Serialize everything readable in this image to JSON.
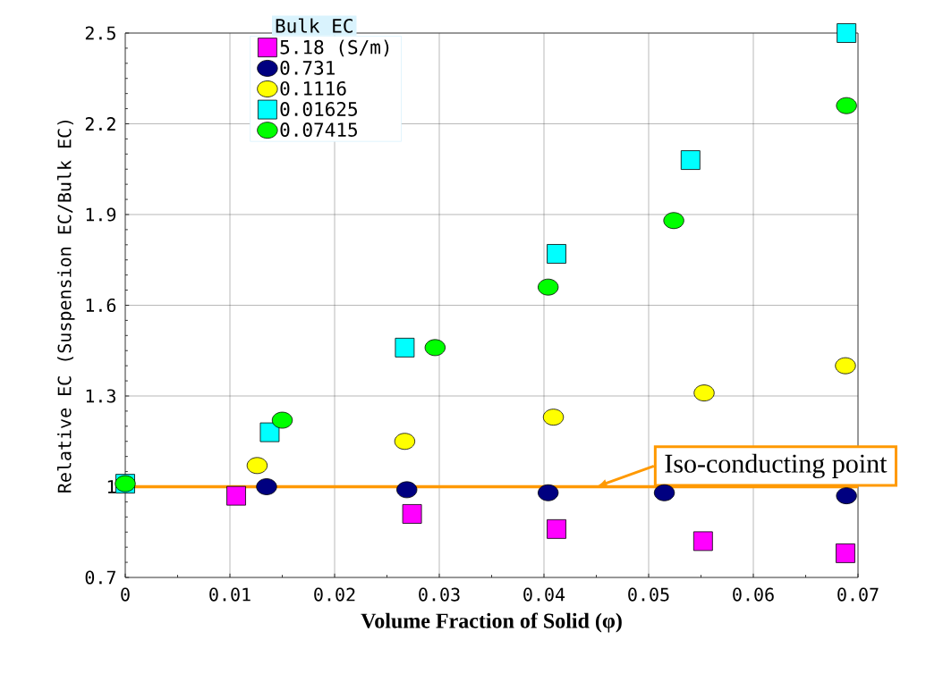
{
  "chart_data": {
    "type": "scatter",
    "xlabel": "Volume Fraction of Solid (φ)",
    "ylabel": "Relative EC (Suspension EC/Bulk EC)",
    "legend_title": "Bulk EC",
    "legend": "top left",
    "grid": true,
    "xlim": [
      0,
      0.07
    ],
    "xticks": [
      0,
      0.01,
      0.02,
      0.03,
      0.04,
      0.05,
      0.06,
      0.07
    ],
    "ylim": [
      0.7,
      2.5
    ],
    "yticks": [
      0.7,
      1,
      1.3,
      1.6,
      1.9,
      2.2,
      2.5
    ],
    "series": [
      {
        "name": "5.18 (S/m)",
        "color": "#ff00ff",
        "marker": "square",
        "x": [
          0.0106,
          0.0274,
          0.0412,
          0.0552,
          0.0688
        ],
        "values": [
          0.97,
          0.91,
          0.86,
          0.82,
          0.78
        ]
      },
      {
        "name": "0.731",
        "color": "#000080",
        "marker": "circle",
        "x": [
          0.0135,
          0.0269,
          0.0404,
          0.0515,
          0.0689
        ],
        "values": [
          1.0,
          0.99,
          0.98,
          0.98,
          0.97
        ]
      },
      {
        "name": "0.1116",
        "color": "#ffff00",
        "marker": "circle",
        "x": [
          0.0126,
          0.0267,
          0.0409,
          0.0553,
          0.0688
        ],
        "values": [
          1.07,
          1.15,
          1.23,
          1.31,
          1.4
        ]
      },
      {
        "name": "0.01625",
        "color": "#00ffff",
        "marker": "square",
        "x": [
          0,
          0.0138,
          0.0267,
          0.0412,
          0.054,
          0.0689
        ],
        "values": [
          1.01,
          1.18,
          1.46,
          1.77,
          2.08,
          2.5
        ]
      },
      {
        "name": "0.07415",
        "color": "#00ff00",
        "marker": "circle",
        "x": [
          0,
          0.015,
          0.0296,
          0.0404,
          0.0524,
          0.0689
        ],
        "values": [
          1.01,
          1.22,
          1.46,
          1.66,
          1.88,
          2.26
        ]
      }
    ],
    "ref_lines": [
      {
        "axis": "y",
        "value": 1,
        "color": "#ff9900"
      }
    ],
    "annotations": [
      {
        "text": "Iso-conducting point",
        "x": 0.045,
        "y": 1
      }
    ]
  }
}
